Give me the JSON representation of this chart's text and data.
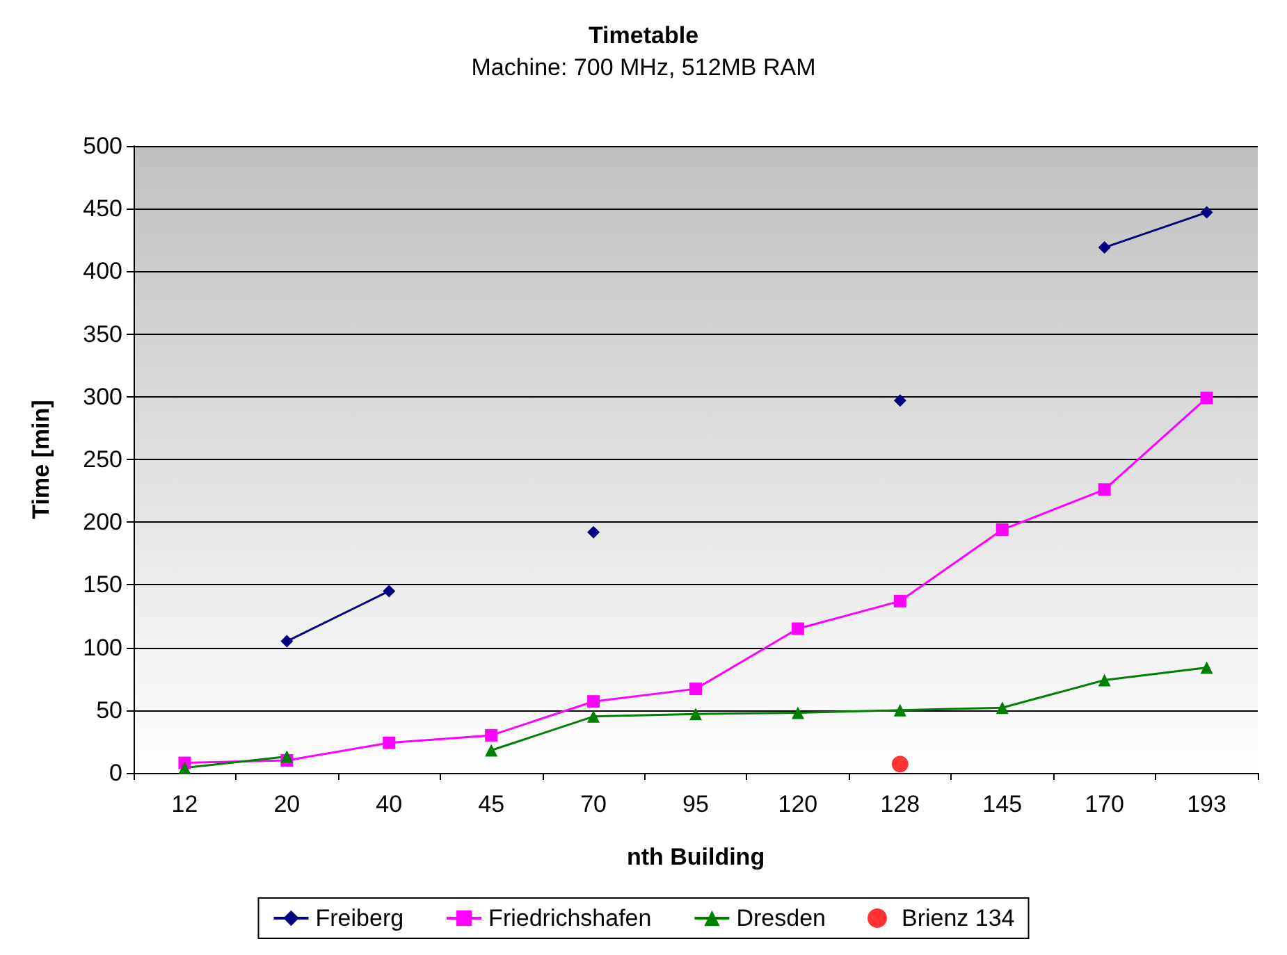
{
  "chart_data": {
    "type": "line",
    "title": "Timetable",
    "subtitle": "Machine: 700 MHz, 512MB RAM",
    "xlabel": "nth Building",
    "ylabel": "Time [min]",
    "categories": [
      "12",
      "20",
      "40",
      "45",
      "70",
      "95",
      "120",
      "128",
      "145",
      "170",
      "193"
    ],
    "series": [
      {
        "name": "Freiberg",
        "color": "#000080",
        "marker": "diamond",
        "values": [
          null,
          105,
          145,
          null,
          192,
          null,
          null,
          297,
          null,
          419,
          447
        ]
      },
      {
        "name": "Friedrichshafen",
        "color": "#ff00ff",
        "marker": "square",
        "values": [
          8,
          10,
          24,
          30,
          57,
          67,
          115,
          137,
          194,
          226,
          299
        ]
      },
      {
        "name": "Dresden",
        "color": "#008000",
        "marker": "triangle",
        "values": [
          4,
          13,
          null,
          18,
          45,
          47,
          48,
          50,
          52,
          74,
          84
        ]
      },
      {
        "name": "Brienz 134",
        "type": "scatter",
        "color": "#ff0000",
        "marker": "circle",
        "values": [
          null,
          null,
          null,
          null,
          null,
          null,
          null,
          7,
          null,
          null,
          null
        ]
      }
    ],
    "ylim": [
      0,
      500
    ],
    "yticks": [
      0,
      50,
      100,
      150,
      200,
      250,
      300,
      350,
      400,
      450,
      500
    ],
    "grid": "y",
    "legend": "bottom"
  }
}
